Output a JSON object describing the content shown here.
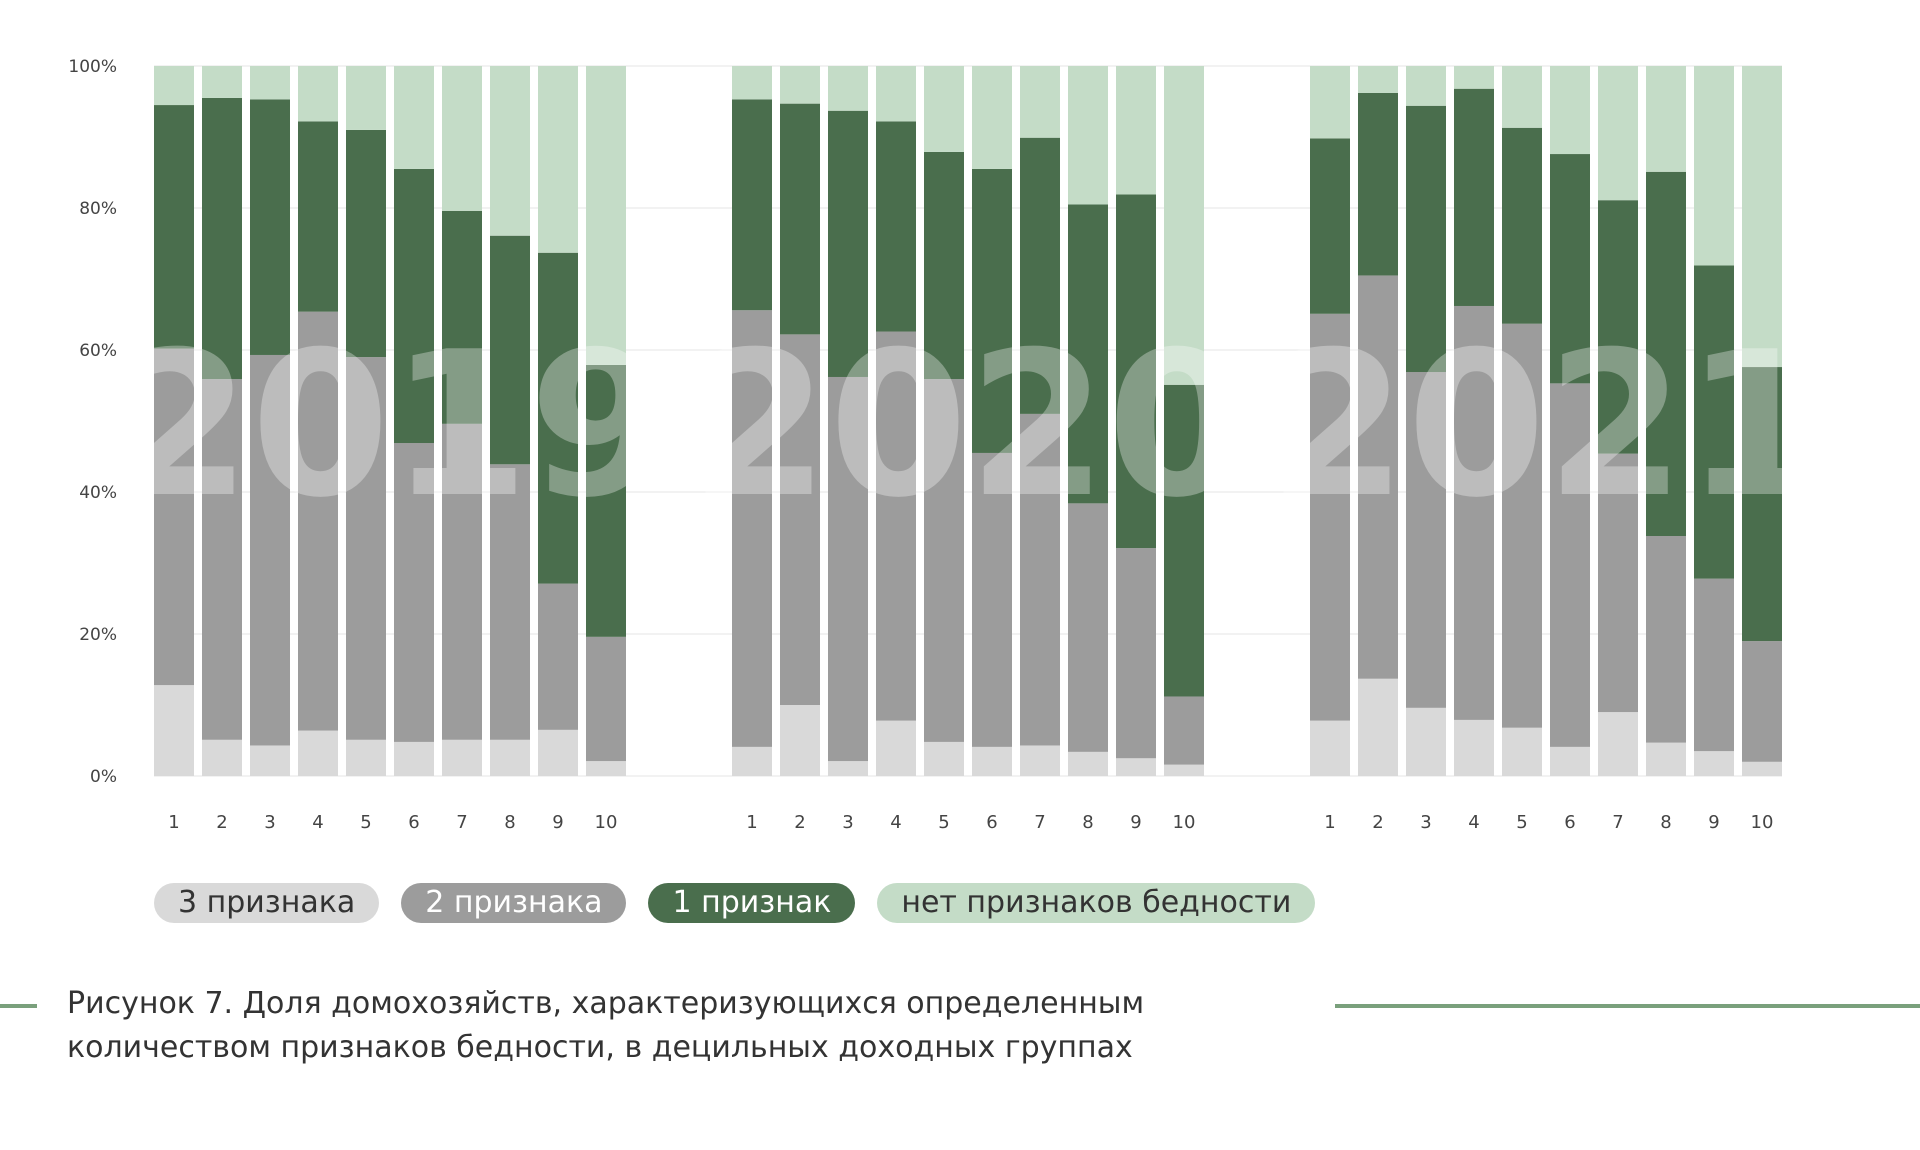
{
  "chart_data": {
    "type": "bar",
    "stacked": true,
    "ylabel": "",
    "xlabel": "",
    "ylim": [
      0,
      100
    ],
    "yticks": [
      "0%",
      "20%",
      "40%",
      "60%",
      "80%",
      "100%"
    ],
    "grid": true,
    "legend_placement": "bottom",
    "categories": [
      "1",
      "2",
      "3",
      "4",
      "5",
      "6",
      "7",
      "8",
      "9",
      "10"
    ],
    "colors": {
      "3 признака": "#d9d9d9",
      "2 признака": "#9c9c9c",
      "1 признак": "#4a6e4d",
      "нет признаков бедности": "#c4dcc7"
    },
    "groups": [
      {
        "year": "2019",
        "series": [
          {
            "name": "3 признака",
            "values": [
              12.8,
              5.1,
              4.3,
              6.4,
              5.1,
              4.8,
              5.1,
              5.1,
              6.5,
              2.1
            ]
          },
          {
            "name": "2 признака",
            "values": [
              47.4,
              50.8,
              55.0,
              59.0,
              53.9,
              42.1,
              44.5,
              38.8,
              20.6,
              17.5
            ]
          },
          {
            "name": "1 признак",
            "values": [
              34.3,
              39.6,
              36.0,
              26.8,
              32.0,
              38.6,
              30.0,
              32.2,
              46.6,
              38.3
            ]
          },
          {
            "name": "нет признаков бедности",
            "values": [
              5.5,
              4.5,
              4.7,
              7.8,
              9.0,
              14.5,
              20.4,
              23.9,
              26.3,
              42.1
            ]
          }
        ]
      },
      {
        "year": "2020",
        "series": [
          {
            "name": "3 признака",
            "values": [
              4.1,
              10.0,
              2.1,
              7.8,
              4.8,
              4.1,
              4.3,
              3.4,
              2.5,
              1.6
            ]
          },
          {
            "name": "2 признака",
            "values": [
              61.5,
              52.2,
              54.1,
              54.8,
              51.1,
              41.4,
              46.7,
              35.0,
              29.6,
              9.6
            ]
          },
          {
            "name": "1 признак",
            "values": [
              29.7,
              32.5,
              37.5,
              29.6,
              32.0,
              40.0,
              38.9,
              42.1,
              49.8,
              43.9
            ]
          },
          {
            "name": "нет признаков бедности",
            "values": [
              4.7,
              5.3,
              6.3,
              7.8,
              12.1,
              14.5,
              10.1,
              19.5,
              18.1,
              44.9
            ]
          }
        ]
      },
      {
        "year": "2021",
        "series": [
          {
            "name": "3 признака",
            "values": [
              7.8,
              13.7,
              9.6,
              7.9,
              6.8,
              4.1,
              9.0,
              4.7,
              3.5,
              2.0
            ]
          },
          {
            "name": "2 признака",
            "values": [
              57.3,
              56.8,
              47.3,
              58.3,
              56.9,
              51.2,
              36.4,
              29.1,
              24.3,
              17.0
            ]
          },
          {
            "name": "1 признак",
            "values": [
              24.7,
              25.7,
              37.5,
              30.6,
              27.6,
              32.3,
              35.7,
              51.3,
              44.1,
              38.6
            ]
          },
          {
            "name": "нет признаков бедности",
            "values": [
              10.2,
              3.8,
              5.6,
              3.2,
              8.7,
              12.4,
              18.9,
              14.9,
              28.1,
              42.4
            ]
          }
        ]
      }
    ]
  },
  "legend": [
    "3 признака",
    "2 признака",
    "1 признак",
    "нет признаков бедности"
  ],
  "caption": {
    "line1": "Рисунок 7. Доля домохозяйств, характеризующихся определенным",
    "line2": "количеством признаков бедности, в децильных доходных группах"
  }
}
